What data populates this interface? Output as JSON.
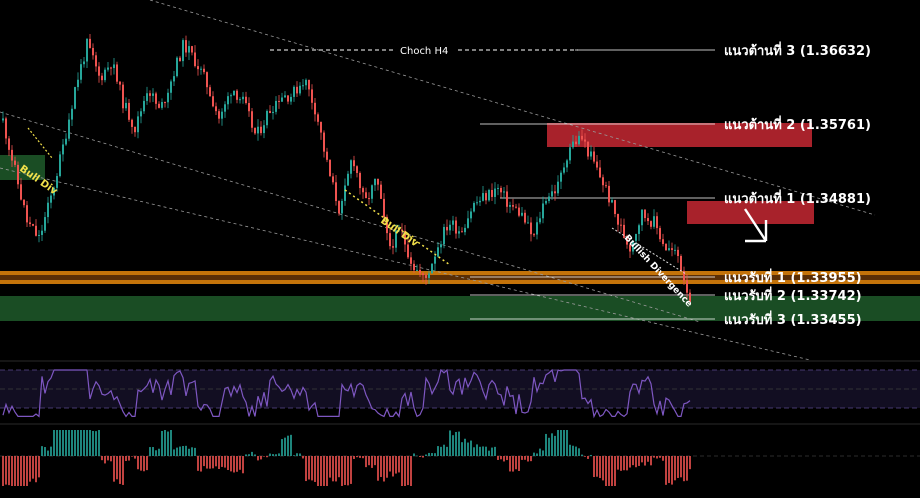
{
  "chart_data": [
    {
      "type": "candlestick",
      "title": "",
      "ylim": [
        1.328,
        1.37
      ],
      "colors": {
        "up": "#26a69a",
        "down": "#ef5350",
        "background": "#000000"
      },
      "candle_path": [
        1.358,
        1.352,
        1.346,
        1.344,
        1.349,
        1.355,
        1.362,
        1.367,
        1.363,
        1.365,
        1.36,
        1.357,
        1.362,
        1.359,
        1.363,
        1.367,
        1.365,
        1.362,
        1.358,
        1.362,
        1.36,
        1.356,
        1.359,
        1.361,
        1.361,
        1.363,
        1.359,
        1.352,
        1.347,
        1.354,
        1.348,
        1.351,
        1.343,
        1.345,
        1.341,
        1.339,
        1.343,
        1.346,
        1.345,
        1.348,
        1.349,
        1.35,
        1.348,
        1.347,
        1.344,
        1.349,
        1.35,
        1.355,
        1.356,
        1.353,
        1.35,
        1.346,
        1.343,
        1.347,
        1.346,
        1.343,
        1.342,
        1.337
      ],
      "levels": [
        {
          "label": "แนวต้านที่ 1 (1.34881)",
          "price": 1.34881,
          "kind": "resistance"
        },
        {
          "label": "แนวต้านที่ 2 (1.35761)",
          "price": 1.35761,
          "kind": "resistance"
        },
        {
          "label": "แนวต้านที่ 3 (1.36632)",
          "price": 1.36632,
          "kind": "resistance"
        },
        {
          "label": "แนวรับที่ 1 (1.33955)",
          "price": 1.33955,
          "kind": "support"
        },
        {
          "label": "แนวรับที่ 2 (1.33742)",
          "price": 1.33742,
          "kind": "support"
        },
        {
          "label": "แนวรับที่ 3 (1.33455)",
          "price": 1.33455,
          "kind": "support"
        }
      ],
      "zones": [
        {
          "kind": "supply",
          "color": "#c62833"
        },
        {
          "kind": "supply",
          "color": "#c62833"
        },
        {
          "kind": "support band",
          "color": "#d9800b"
        },
        {
          "kind": "demand",
          "color": "#1f5a2a"
        },
        {
          "kind": "demand",
          "color": "#1f5a2a"
        }
      ],
      "annotations": [
        "Choch H4",
        "Bull Div",
        "Bull Div",
        "Bullish Divergence"
      ]
    },
    {
      "type": "line",
      "indicator_line_color": "#7e57c2",
      "ylim": [
        0,
        100
      ]
    },
    {
      "type": "histogram",
      "colors": {
        "positive": "#26a69a",
        "negative": "#ef5350"
      }
    }
  ]
}
